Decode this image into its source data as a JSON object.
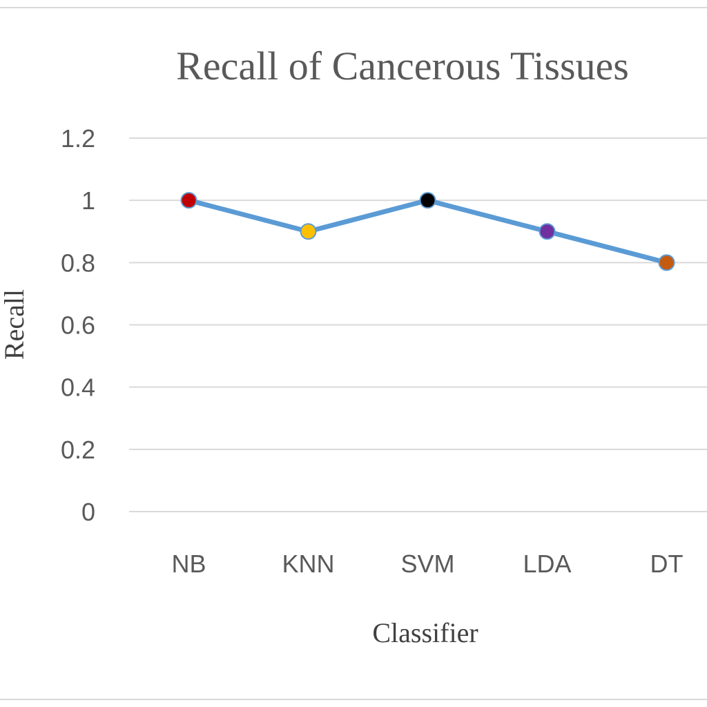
{
  "chart_data": {
    "type": "line",
    "title": "Recall of Cancerous Tissues",
    "xlabel": "Classifier",
    "ylabel": "Recall",
    "categories": [
      "NB",
      "KNN",
      "SVM",
      "LDA",
      "DT"
    ],
    "ylim": [
      0,
      1.2
    ],
    "yticks": [
      "0",
      "0.2",
      "0.4",
      "0.6",
      "0.8",
      "1",
      "1.2"
    ],
    "grid": true,
    "series": [
      {
        "values": [
          1.0,
          0.9,
          1.0,
          0.9,
          0.8
        ],
        "line_color": "#5b9bd5",
        "marker_colors": [
          "#c00000",
          "#ffc000",
          "#000000",
          "#7030a0",
          "#c55a11"
        ]
      }
    ]
  }
}
